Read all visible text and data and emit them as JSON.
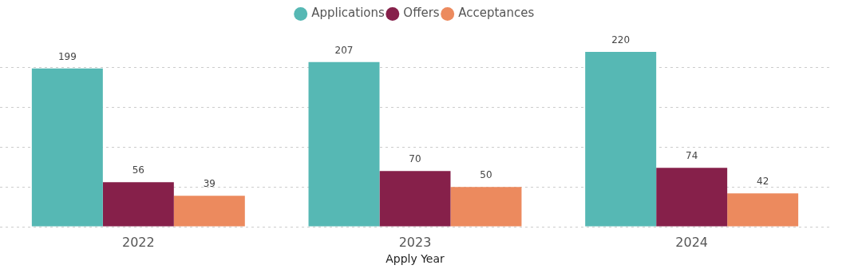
{
  "chart_data": {
    "type": "bar",
    "xlabel": "Apply Year",
    "categories": [
      "2022",
      "2023",
      "2024"
    ],
    "series": [
      {
        "name": "Applications",
        "color": "#56b8b4",
        "values": [
          199,
          207,
          220
        ]
      },
      {
        "name": "Offers",
        "color": "#86204a",
        "values": [
          56,
          70,
          74
        ]
      },
      {
        "name": "Acceptances",
        "color": "#ec8a5e",
        "values": [
          39,
          50,
          42
        ]
      }
    ],
    "yticks": [
      {
        "value": 0,
        "label": null
      },
      {
        "value": 50,
        "label": null
      },
      {
        "value": 100,
        "label": null
      },
      {
        "value": 150,
        "label": null
      },
      {
        "value": 200,
        "label": null
      }
    ],
    "grid": "y",
    "legend": "top",
    "data_labels": true,
    "tick_labels": "x"
  }
}
